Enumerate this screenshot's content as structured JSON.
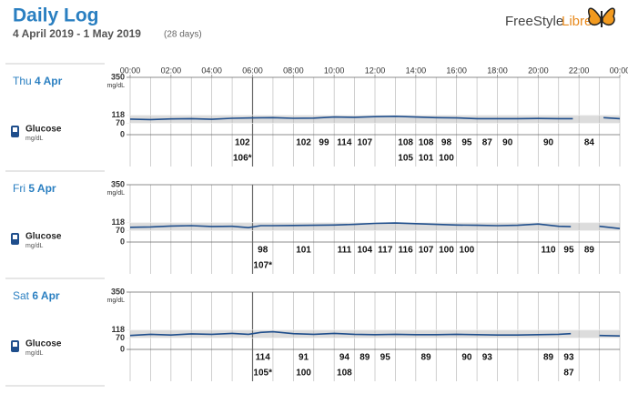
{
  "header": {
    "title": "Daily Log",
    "date_range": "4 April 2019 - 1 May 2019",
    "days": "(28 days)",
    "brand": "FreeStyle",
    "brand2": "Libre"
  },
  "chart_data": [
    {
      "type": "line",
      "day": "Thu",
      "date": "4 Apr",
      "unit": "mg/dL",
      "ylabel": "mg/dL",
      "xlim": [
        0,
        24
      ],
      "ylim": [
        0,
        350
      ],
      "yticks": [
        0,
        70,
        118,
        350
      ],
      "xticks": [
        {
          "value": 0,
          "label": "00:00"
        },
        {
          "value": 2,
          "label": "02:00"
        },
        {
          "value": 4,
          "label": "04:00"
        },
        {
          "value": 6,
          "label": "06:00"
        },
        {
          "value": 8,
          "label": "08:00"
        },
        {
          "value": 10,
          "label": "10:00"
        },
        {
          "value": 12,
          "label": "12:00"
        },
        {
          "value": 14,
          "label": "14:00"
        },
        {
          "value": 16,
          "label": "16:00"
        },
        {
          "value": 18,
          "label": "18:00"
        },
        {
          "value": 20,
          "label": "20:00"
        },
        {
          "value": 22,
          "label": "22:00"
        },
        {
          "value": 24,
          "label": "00:00"
        }
      ],
      "series": [
        {
          "name": "Glucose",
          "color": "#1f4e8c",
          "x": [
            0,
            1,
            2,
            3,
            4,
            5,
            6,
            7,
            8,
            9,
            10,
            11,
            12,
            13,
            14,
            15,
            16,
            17,
            18,
            19,
            20,
            21,
            21.7,
            22.5,
            23.2,
            24
          ],
          "values": [
            95,
            92,
            96,
            98,
            94,
            100,
            102,
            104,
            100,
            101,
            108,
            106,
            110,
            112,
            108,
            104,
            102,
            98,
            98,
            98,
            99,
            98,
            98,
            null,
            104,
            98
          ]
        }
      ],
      "readings": [
        [
          null,
          null,
          null,
          null,
          null,
          102,
          null,
          null,
          102,
          99,
          114,
          107,
          null,
          108,
          108,
          98,
          95,
          87,
          90,
          null,
          90,
          null,
          84,
          null
        ],
        [
          null,
          null,
          null,
          null,
          null,
          "106*",
          null,
          null,
          null,
          null,
          null,
          null,
          null,
          105,
          101,
          100,
          null,
          null,
          null,
          null,
          null,
          null,
          null,
          null
        ]
      ]
    },
    {
      "type": "line",
      "day": "Fri",
      "date": "5 Apr",
      "unit": "mg/dL",
      "ylabel": "mg/dL",
      "xlim": [
        0,
        24
      ],
      "ylim": [
        0,
        350
      ],
      "yticks": [
        0,
        70,
        118,
        350
      ],
      "series": [
        {
          "name": "Glucose",
          "color": "#1f4e8c",
          "x": [
            0,
            1,
            2,
            3,
            4,
            5,
            5.8,
            6.4,
            7,
            8,
            9,
            10,
            11,
            12,
            13,
            14,
            15,
            16,
            17,
            18,
            19,
            20,
            21,
            21.6,
            22.3,
            23,
            24
          ],
          "values": [
            90,
            92,
            98,
            100,
            95,
            96,
            88,
            100,
            100,
            101,
            102,
            104,
            108,
            114,
            116,
            112,
            108,
            104,
            102,
            100,
            102,
            110,
            96,
            94,
            null,
            96,
            82
          ]
        }
      ],
      "readings": [
        [
          null,
          null,
          null,
          null,
          null,
          null,
          98,
          null,
          101,
          null,
          111,
          104,
          117,
          116,
          107,
          100,
          100,
          null,
          null,
          null,
          110,
          95,
          89,
          null
        ],
        [
          null,
          null,
          null,
          null,
          null,
          null,
          "107*",
          null,
          null,
          null,
          null,
          null,
          null,
          null,
          null,
          null,
          null,
          null,
          null,
          null,
          null,
          null,
          null,
          null
        ]
      ]
    },
    {
      "type": "line",
      "day": "Sat",
      "date": "6 Apr",
      "unit": "mg/dL",
      "ylabel": "mg/dL",
      "xlim": [
        0,
        24
      ],
      "ylim": [
        0,
        350
      ],
      "yticks": [
        0,
        70,
        118,
        350
      ],
      "series": [
        {
          "name": "Glucose",
          "color": "#1f4e8c",
          "x": [
            0,
            1,
            2,
            3,
            4,
            5,
            5.8,
            6.4,
            7,
            8,
            9,
            10,
            11,
            12,
            13,
            14,
            15,
            16,
            17,
            18,
            19,
            20,
            21,
            21.6,
            22.3,
            23,
            24
          ],
          "values": [
            85,
            92,
            88,
            95,
            92,
            98,
            92,
            104,
            108,
            96,
            92,
            98,
            92,
            90,
            92,
            90,
            90,
            92,
            90,
            88,
            88,
            90,
            92,
            96,
            null,
            85,
            82
          ]
        }
      ],
      "readings": [
        [
          null,
          null,
          null,
          null,
          null,
          null,
          114,
          null,
          91,
          null,
          94,
          89,
          95,
          null,
          89,
          null,
          90,
          93,
          null,
          null,
          89,
          93,
          null,
          null
        ],
        [
          null,
          null,
          null,
          null,
          null,
          null,
          "105*",
          null,
          100,
          null,
          108,
          null,
          null,
          null,
          null,
          null,
          null,
          null,
          null,
          null,
          null,
          87,
          null,
          null
        ]
      ]
    }
  ]
}
